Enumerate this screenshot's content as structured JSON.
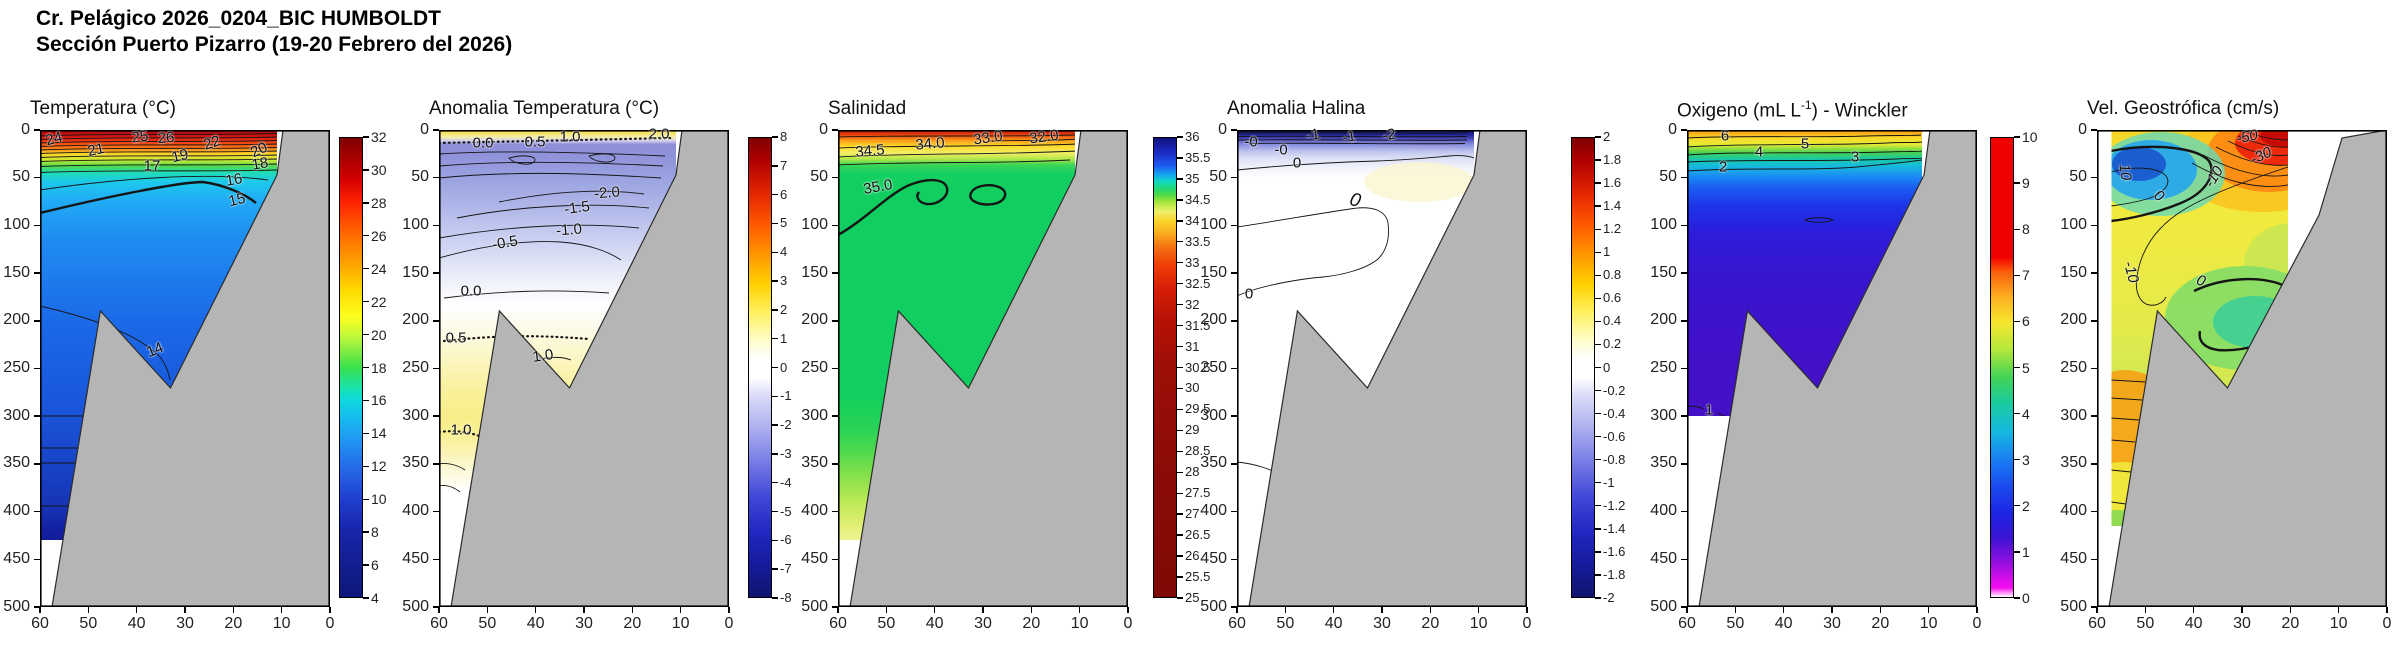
{
  "header": {
    "line1": "Cr. Pelágico 2026_0204_BIC HUMBOLDT",
    "line2": "Sección Puerto Pizarro (19-20 Febrero del 2026)"
  },
  "chart_data": {
    "type": "heatmap",
    "subtype": "ocean-vertical-contour-sections",
    "shared_axes": {
      "x_ticks": [
        60,
        50,
        40,
        30,
        20,
        10,
        0
      ],
      "x_reversed": true,
      "y_ticks": [
        0,
        50,
        100,
        150,
        200,
        250,
        300,
        350,
        400,
        450,
        500
      ],
      "y_range_m": [
        0,
        500
      ]
    },
    "bathymetry_profile_km_depth": [
      [
        57.5,
        500
      ],
      [
        47.5,
        190
      ],
      [
        33,
        270
      ],
      [
        11,
        65
      ],
      [
        4.8,
        0
      ],
      [
        0,
        0
      ]
    ],
    "panels": [
      {
        "id": "temperatura",
        "title": "Temperatura (°C)",
        "colorbar": {
          "max": 32,
          "min": 4,
          "tick_step": 2,
          "ticks": [
            32,
            30,
            28,
            26,
            24,
            22,
            20,
            18,
            16,
            14,
            12,
            10,
            8,
            6,
            4
          ],
          "gradient": [
            [
              0,
              "#7f0000"
            ],
            [
              4,
              "#a50000"
            ],
            [
              9,
              "#d40000"
            ],
            [
              14,
              "#ff2200"
            ],
            [
              21,
              "#ff6a00"
            ],
            [
              28,
              "#ffa800"
            ],
            [
              33,
              "#ffd900"
            ],
            [
              39,
              "#fdff1f"
            ],
            [
              43,
              "#c3f93a"
            ],
            [
              50,
              "#3ae14b"
            ],
            [
              55,
              "#14e2b8"
            ],
            [
              57,
              "#0fd9de"
            ],
            [
              62,
              "#19b3f2"
            ],
            [
              66,
              "#2196f5"
            ],
            [
              71,
              "#2470e8"
            ],
            [
              75,
              "#2456dd"
            ],
            [
              79,
              "#1f3dcd"
            ],
            [
              85,
              "#1827ae"
            ],
            [
              92,
              "#131f92"
            ],
            [
              100,
              "#0d1678"
            ]
          ]
        },
        "contour_labels": [
          {
            "t": "24",
            "x": 14,
            "y": 9,
            "r": -14
          },
          {
            "t": "21",
            "x": 56,
            "y": 20,
            "r": -12
          },
          {
            "t": "25",
            "x": 100,
            "y": 7,
            "r": -8
          },
          {
            "t": "26",
            "x": 126,
            "y": 8,
            "r": -5
          },
          {
            "t": "22",
            "x": 172,
            "y": 13,
            "r": -18
          },
          {
            "t": "19",
            "x": 140,
            "y": 26,
            "r": -14
          },
          {
            "t": "20",
            "x": 219,
            "y": 20,
            "r": -25
          },
          {
            "t": "18",
            "x": 220,
            "y": 34,
            "r": -10
          },
          {
            "t": "17",
            "x": 112,
            "y": 36,
            "r": 0
          },
          {
            "t": "16",
            "x": 194,
            "y": 50,
            "r": -10
          },
          {
            "t": "15",
            "x": 197,
            "y": 70,
            "r": -14
          },
          {
            "t": "14",
            "x": 115,
            "y": 220,
            "r": -22
          }
        ]
      },
      {
        "id": "anomalia-temperatura",
        "title": "Anomalia Temperatura (°C)",
        "colorbar": {
          "max": 8,
          "min": -8,
          "tick_step": 1,
          "ticks": [
            8,
            7,
            6,
            5,
            4,
            3,
            2,
            1,
            0,
            -1,
            -2,
            -3,
            -4,
            -5,
            -6,
            -7,
            -8
          ],
          "gradient": [
            [
              0,
              "#7f0000"
            ],
            [
              5,
              "#b00000"
            ],
            [
              12,
              "#e32500"
            ],
            [
              19,
              "#ff5a00"
            ],
            [
              26,
              "#ff9c00"
            ],
            [
              32,
              "#ffd200"
            ],
            [
              38,
              "#fff060"
            ],
            [
              44,
              "#fffdc8"
            ],
            [
              48,
              "#ffffff"
            ],
            [
              52,
              "#ffffff"
            ],
            [
              56,
              "#dcdcf8"
            ],
            [
              62,
              "#b4b7f0"
            ],
            [
              70,
              "#7b80e6"
            ],
            [
              78,
              "#4249d8"
            ],
            [
              86,
              "#2026c0"
            ],
            [
              93,
              "#161b9b"
            ],
            [
              100,
              "#10136f"
            ]
          ]
        },
        "contour_labels": [
          {
            "t": "0.0",
            "x": 44,
            "y": 13,
            "r": 0
          },
          {
            "t": "0.5",
            "x": 96,
            "y": 12,
            "r": 0
          },
          {
            "t": "1.0",
            "x": 131,
            "y": 7,
            "r": 0
          },
          {
            "t": "2.0",
            "x": 220,
            "y": 4,
            "r": 0
          },
          {
            "t": "-2.0",
            "x": 168,
            "y": 63,
            "r": -5
          },
          {
            "t": "-1.5",
            "x": 138,
            "y": 78,
            "r": -8
          },
          {
            "t": "-1.0",
            "x": 130,
            "y": 100,
            "r": -5
          },
          {
            "t": "-0.5",
            "x": 66,
            "y": 113,
            "r": -10
          },
          {
            "t": "0.0",
            "x": 32,
            "y": 161,
            "r": 0
          },
          {
            "t": "0.5",
            "x": 17,
            "y": 208,
            "r": 0
          },
          {
            "t": "1.0",
            "x": 104,
            "y": 226,
            "r": -8
          },
          {
            "t": "1.0",
            "x": 22,
            "y": 300,
            "r": 0
          }
        ]
      },
      {
        "id": "salinidad",
        "title": "Salinidad",
        "colorbar": {
          "max": 36,
          "min": 25,
          "tick_step": 0.5,
          "ticks": [
            36,
            35.5,
            35,
            34.5,
            34,
            33.5,
            33,
            32.5,
            32,
            31.5,
            31,
            30.5,
            30,
            29.5,
            29,
            28.5,
            28,
            27.5,
            27,
            26.5,
            26,
            25.5,
            25
          ],
          "gradient": [
            [
              0,
              "#10137f"
            ],
            [
              3,
              "#1b2ac0"
            ],
            [
              6,
              "#1e58f0"
            ],
            [
              8,
              "#13a8f0"
            ],
            [
              9.5,
              "#11d8c0"
            ],
            [
              11,
              "#1fd875"
            ],
            [
              12.5,
              "#53d943"
            ],
            [
              14,
              "#a8e53c"
            ],
            [
              16,
              "#eef06a"
            ],
            [
              18,
              "#fbd52b"
            ],
            [
              21,
              "#f9a81e"
            ],
            [
              24,
              "#f56d10"
            ],
            [
              28,
              "#ee3c08"
            ],
            [
              33,
              "#d51e07"
            ],
            [
              40,
              "#b61106"
            ],
            [
              50,
              "#9e0e08"
            ],
            [
              70,
              "#8c0c06"
            ],
            [
              100,
              "#7f0a05"
            ]
          ]
        },
        "contour_labels": [
          {
            "t": "34.5",
            "x": 32,
            "y": 21,
            "r": -5
          },
          {
            "t": "34.0",
            "x": 92,
            "y": 14,
            "r": -5
          },
          {
            "t": "33.0",
            "x": 150,
            "y": 8,
            "r": -8
          },
          {
            "t": "32.0",
            "x": 206,
            "y": 7,
            "r": -8
          },
          {
            "t": "35.0",
            "x": 40,
            "y": 57,
            "r": -10
          }
        ]
      },
      {
        "id": "anomalia-halina",
        "title": "Anomalia Halina",
        "colorbar": {
          "max": 2,
          "min": -2,
          "tick_step": 0.2,
          "ticks": [
            2,
            1.8,
            1.6,
            1.4,
            1.2,
            1,
            0.8,
            0.6,
            0.4,
            0.2,
            0,
            -0.2,
            -0.4,
            -0.6,
            -0.8,
            -1,
            -1.2,
            -1.4,
            -1.6,
            -1.8,
            -2
          ],
          "gradient": [
            [
              0,
              "#7f0000"
            ],
            [
              5,
              "#b00000"
            ],
            [
              12,
              "#e32500"
            ],
            [
              19,
              "#ff5a00"
            ],
            [
              26,
              "#ff9c00"
            ],
            [
              32,
              "#ffd200"
            ],
            [
              38,
              "#fff060"
            ],
            [
              44,
              "#fffdc8"
            ],
            [
              48,
              "#ffffff"
            ],
            [
              52,
              "#ffffff"
            ],
            [
              56,
              "#dcdcf8"
            ],
            [
              62,
              "#b4b7f0"
            ],
            [
              70,
              "#7b80e6"
            ],
            [
              78,
              "#4249d8"
            ],
            [
              86,
              "#2026c0"
            ],
            [
              93,
              "#161b9b"
            ],
            [
              100,
              "#10136f"
            ]
          ]
        },
        "contour_labels": [
          {
            "t": "-0",
            "x": 14,
            "y": 12,
            "r": 0
          },
          {
            "t": "-0",
            "x": 44,
            "y": 20,
            "r": 0
          },
          {
            "t": "-1",
            "x": 76,
            "y": 5,
            "r": -10
          },
          {
            "t": "-1",
            "x": 112,
            "y": 7,
            "r": -10
          },
          {
            "t": "-2",
            "x": 152,
            "y": 5,
            "r": -10
          },
          {
            "t": "0",
            "x": 60,
            "y": 33,
            "r": 0
          },
          {
            "t": "0",
            "x": 118,
            "y": 71,
            "r": 15,
            "i": 1,
            "s": 19
          },
          {
            "t": "0",
            "x": 12,
            "y": 164,
            "r": 0
          }
        ]
      },
      {
        "id": "oxigeno",
        "title": "Oxigeno (mL L-1) - Winckler",
        "title_parts": {
          "pre": "Oxigeno (mL L",
          "sup": "-1",
          "post": ") - Winckler"
        },
        "colorbar": {
          "max": 10,
          "min": 0,
          "tick_step": 1,
          "ticks": [
            10,
            9,
            8,
            7,
            6,
            5,
            4,
            3,
            2,
            1,
            0
          ],
          "gradient": [
            [
              0,
              "#f10000"
            ],
            [
              26,
              "#f10000"
            ],
            [
              29,
              "#fb5a0a"
            ],
            [
              34,
              "#fca81e"
            ],
            [
              40,
              "#f8e52e"
            ],
            [
              46,
              "#b5e83a"
            ],
            [
              52,
              "#44d355"
            ],
            [
              58,
              "#17cba0"
            ],
            [
              64,
              "#16b8e0"
            ],
            [
              70,
              "#1a7ef2"
            ],
            [
              76,
              "#1b4af0"
            ],
            [
              82,
              "#1d24e2"
            ],
            [
              87,
              "#3a14d4"
            ],
            [
              91,
              "#7a10dc"
            ],
            [
              95,
              "#c20ee8"
            ],
            [
              98,
              "#f80cf0"
            ],
            [
              100,
              "#ffffff"
            ]
          ]
        },
        "contour_labels": [
          {
            "t": "6",
            "x": 38,
            "y": 6,
            "r": 0
          },
          {
            "t": "5",
            "x": 118,
            "y": 14,
            "r": 0
          },
          {
            "t": "4",
            "x": 72,
            "y": 22,
            "r": 0
          },
          {
            "t": "3",
            "x": 168,
            "y": 27,
            "r": 0
          },
          {
            "t": "2",
            "x": 36,
            "y": 37,
            "r": 0
          },
          {
            "t": "1",
            "x": 22,
            "y": 280,
            "r": 0
          }
        ]
      },
      {
        "id": "vel-geostrofica",
        "title": "Vel. Geostrófica (cm/s)",
        "colorbar": null,
        "contour_labels": [
          {
            "t": "-50",
            "x": 150,
            "y": 7,
            "r": -12,
            "i": 1
          },
          {
            "t": "-30",
            "x": 164,
            "y": 26,
            "r": -25,
            "i": 1
          },
          {
            "t": "-10",
            "x": 117,
            "y": 47,
            "r": -58,
            "i": 1
          },
          {
            "t": "10",
            "x": 28,
            "y": 42,
            "r": 82,
            "i": 1
          },
          {
            "t": "0",
            "x": 62,
            "y": 66,
            "r": 35,
            "i": 1
          },
          {
            "t": "-10",
            "x": 34,
            "y": 142,
            "r": 75,
            "i": 1
          },
          {
            "t": "0",
            "x": 104,
            "y": 151,
            "r": 20,
            "i": 1
          }
        ]
      }
    ]
  }
}
